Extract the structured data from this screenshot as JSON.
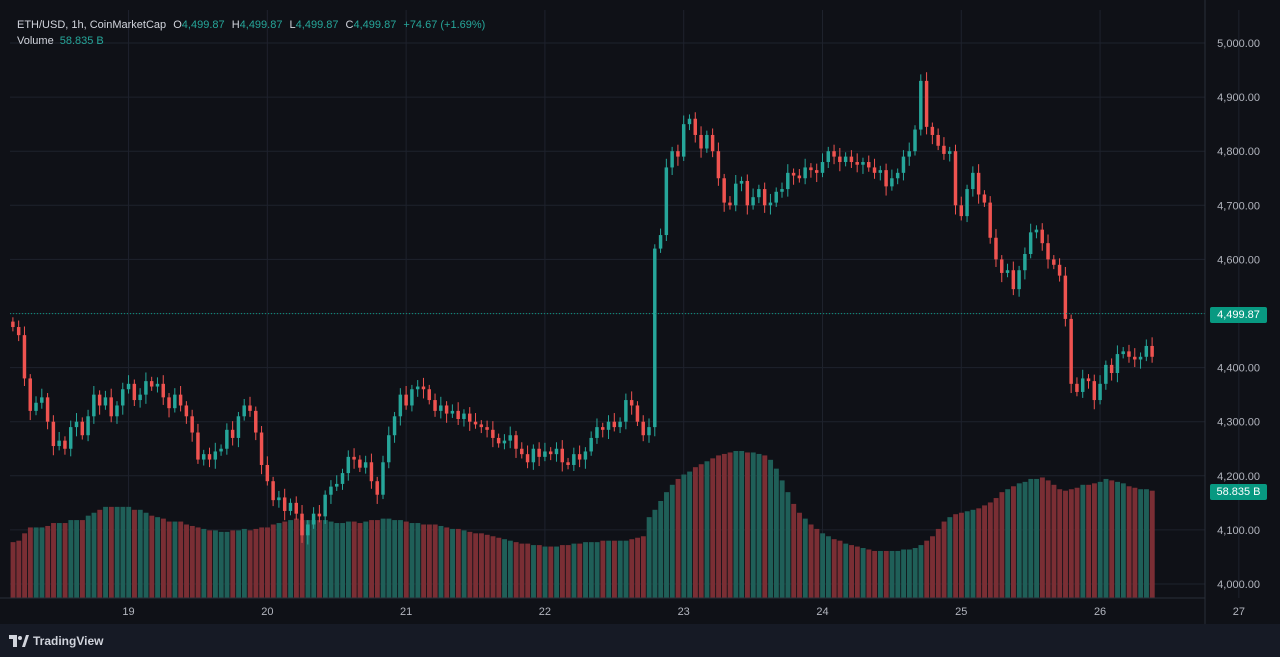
{
  "legend": {
    "symbol": "ETH/USD, 1h, CoinMarketCap",
    "open_label": "O",
    "open": "4,499.87",
    "high_label": "H",
    "high": "4,499.87",
    "low_label": "L",
    "low": "4,499.87",
    "close_label": "C",
    "close": "4,499.87",
    "change": "+74.67 (+1.69%)",
    "volume_label": "Volume",
    "volume": "58.835 B"
  },
  "badges": {
    "last_price": "4,499.87",
    "volume": "58.835 B"
  },
  "footer": {
    "brand": "TradingView"
  },
  "colors": {
    "up": "#26a69a",
    "down": "#ef5350",
    "grid": "#1e222d",
    "background": "#0f1117",
    "price_line": "#089981"
  },
  "chart_data": {
    "type": "candlestick",
    "title": "ETH/USD, 1h, CoinMarketCap",
    "ylim": [
      3970,
      5060
    ],
    "y_ticks": [
      "5,000.00",
      "4,900.00",
      "4,800.00",
      "4,700.00",
      "4,600.00",
      "4,500.00",
      "4,400.00",
      "4,300.00",
      "4,200.00",
      "4,100.00",
      "4,000.00"
    ],
    "y_tick_values": [
      5000,
      4900,
      4800,
      4700,
      4600,
      4500,
      4400,
      4300,
      4200,
      4100,
      4000
    ],
    "x_ticks": [
      "19",
      "20",
      "21",
      "22",
      "23",
      "24",
      "25",
      "26",
      "27"
    ],
    "last_price": 4499.87,
    "grid": true,
    "closes": [
      4475,
      4460,
      4380,
      4320,
      4335,
      4345,
      4300,
      4255,
      4265,
      4250,
      4290,
      4300,
      4275,
      4310,
      4350,
      4330,
      4345,
      4310,
      4330,
      4360,
      4370,
      4340,
      4350,
      4375,
      4365,
      4370,
      4345,
      4325,
      4350,
      4330,
      4310,
      4280,
      4230,
      4240,
      4230,
      4245,
      4250,
      4285,
      4270,
      4310,
      4330,
      4320,
      4280,
      4220,
      4190,
      4155,
      4160,
      4135,
      4150,
      4130,
      4090,
      4110,
      4130,
      4125,
      4165,
      4180,
      4185,
      4205,
      4235,
      4230,
      4215,
      4225,
      4190,
      4165,
      4225,
      4275,
      4310,
      4350,
      4330,
      4360,
      4365,
      4360,
      4340,
      4320,
      4330,
      4315,
      4320,
      4305,
      4315,
      4300,
      4295,
      4290,
      4285,
      4270,
      4260,
      4265,
      4275,
      4250,
      4240,
      4225,
      4250,
      4235,
      4245,
      4240,
      4250,
      4225,
      4220,
      4240,
      4230,
      4245,
      4270,
      4290,
      4285,
      4300,
      4290,
      4300,
      4340,
      4330,
      4300,
      4275,
      4290,
      4620,
      4645,
      4770,
      4800,
      4790,
      4850,
      4860,
      4830,
      4805,
      4830,
      4800,
      4750,
      4705,
      4700,
      4740,
      4745,
      4700,
      4715,
      4730,
      4700,
      4705,
      4725,
      4730,
      4760,
      4755,
      4750,
      4770,
      4765,
      4760,
      4780,
      4800,
      4790,
      4780,
      4790,
      4780,
      4775,
      4780,
      4770,
      4760,
      4765,
      4735,
      4750,
      4760,
      4790,
      4800,
      4840,
      4930,
      4845,
      4830,
      4810,
      4795,
      4800,
      4700,
      4680,
      4730,
      4760,
      4720,
      4705,
      4640,
      4600,
      4575,
      4580,
      4545,
      4580,
      4610,
      4650,
      4655,
      4630,
      4600,
      4590,
      4570,
      4490,
      4370,
      4355,
      4380,
      4375,
      4340,
      4370,
      4405,
      4390,
      4425,
      4430,
      4420,
      4415,
      4420,
      4440,
      4420
    ],
    "volume_scale": [
      0.38,
      0.39,
      0.44,
      0.48,
      0.48,
      0.48,
      0.49,
      0.51,
      0.51,
      0.51,
      0.53,
      0.53,
      0.53,
      0.56,
      0.58,
      0.6,
      0.62,
      0.62,
      0.62,
      0.62,
      0.62,
      0.6,
      0.6,
      0.58,
      0.56,
      0.55,
      0.54,
      0.52,
      0.52,
      0.52,
      0.5,
      0.49,
      0.48,
      0.47,
      0.46,
      0.46,
      0.45,
      0.45,
      0.46,
      0.46,
      0.47,
      0.46,
      0.47,
      0.48,
      0.48,
      0.5,
      0.51,
      0.52,
      0.53,
      0.54,
      0.53,
      0.53,
      0.53,
      0.53,
      0.53,
      0.52,
      0.51,
      0.51,
      0.52,
      0.52,
      0.51,
      0.52,
      0.53,
      0.53,
      0.54,
      0.54,
      0.53,
      0.53,
      0.52,
      0.51,
      0.51,
      0.5,
      0.5,
      0.5,
      0.49,
      0.48,
      0.47,
      0.47,
      0.46,
      0.45,
      0.44,
      0.44,
      0.43,
      0.42,
      0.41,
      0.4,
      0.39,
      0.38,
      0.37,
      0.37,
      0.36,
      0.36,
      0.35,
      0.35,
      0.35,
      0.36,
      0.36,
      0.37,
      0.37,
      0.38,
      0.38,
      0.38,
      0.39,
      0.39,
      0.39,
      0.39,
      0.39,
      0.4,
      0.41,
      0.42,
      0.55,
      0.6,
      0.66,
      0.72,
      0.77,
      0.81,
      0.84,
      0.86,
      0.89,
      0.91,
      0.93,
      0.95,
      0.97,
      0.98,
      0.99,
      1.0,
      1.0,
      0.99,
      0.99,
      0.98,
      0.97,
      0.94,
      0.88,
      0.8,
      0.72,
      0.64,
      0.58,
      0.54,
      0.5,
      0.47,
      0.44,
      0.42,
      0.4,
      0.39,
      0.37,
      0.36,
      0.35,
      0.34,
      0.33,
      0.32,
      0.32,
      0.32,
      0.32,
      0.32,
      0.33,
      0.33,
      0.34,
      0.36,
      0.39,
      0.42,
      0.47,
      0.52,
      0.55,
      0.57,
      0.58,
      0.59,
      0.6,
      0.61,
      0.63,
      0.65,
      0.68,
      0.72,
      0.74,
      0.76,
      0.78,
      0.79,
      0.81,
      0.81,
      0.82,
      0.8,
      0.77,
      0.74,
      0.73,
      0.74,
      0.75,
      0.77,
      0.77,
      0.78,
      0.79,
      0.81,
      0.8,
      0.79,
      0.78,
      0.76,
      0.75,
      0.74,
      0.74,
      0.73
    ]
  }
}
